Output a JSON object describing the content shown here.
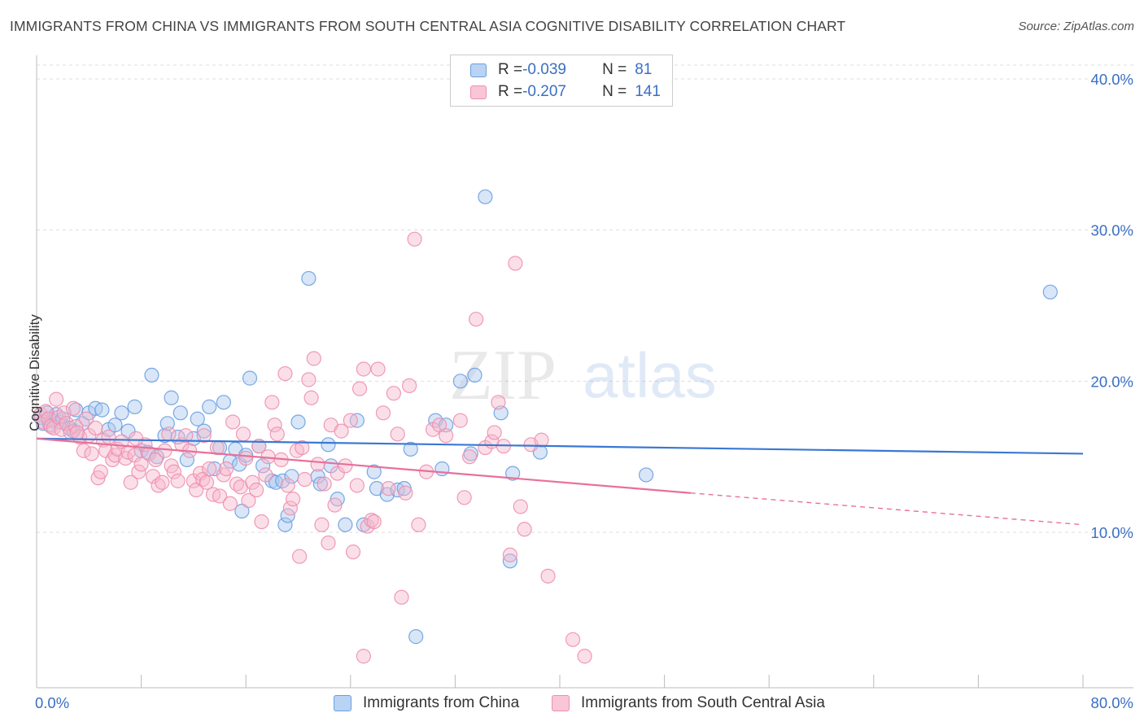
{
  "title": "IMMIGRANTS FROM CHINA VS IMMIGRANTS FROM SOUTH CENTRAL ASIA COGNITIVE DISABILITY CORRELATION CHART",
  "source": "Source: ZipAtlas.com",
  "watermark": {
    "zip": "ZIP",
    "atlas": "atlas"
  },
  "legend": {
    "rows": [
      {
        "r_label": "R = ",
        "r_value": "-0.039",
        "n_label": "N = ",
        "n_value": "81"
      },
      {
        "r_label": "R = ",
        "r_value": "-0.207",
        "n_label": "N = ",
        "n_value": "141"
      }
    ]
  },
  "colors": {
    "china_fill": "#a9c8f0",
    "china_stroke": "#6b9ee0",
    "china_line": "#3a78d4",
    "sca_fill": "#f6b9cc",
    "sca_stroke": "#ee8fae",
    "sca_line": "#e8709a",
    "tick_label": "#3a6fc4",
    "grid": "#dddddd"
  },
  "chart_data": {
    "type": "scatter",
    "title": "IMMIGRANTS FROM CHINA VS IMMIGRANTS FROM SOUTH CENTRAL ASIA COGNITIVE DISABILITY CORRELATION CHART",
    "xlabel": "",
    "ylabel": "Cognitive Disability",
    "xlim": [
      0,
      80
    ],
    "ylim": [
      0,
      41.5
    ],
    "x_tick_labels": [
      "0.0%",
      "80.0%"
    ],
    "y_ticks": [
      10,
      20,
      30,
      40
    ],
    "y_tick_labels": [
      "10.0%",
      "20.0%",
      "30.0%",
      "40.0%"
    ],
    "series": [
      {
        "name": "Immigrants from China",
        "r": -0.039,
        "n": 81,
        "trend": {
          "x0": 0,
          "y0": 16.2,
          "x1": 80,
          "y1": 15.2
        },
        "points": [
          [
            0.3,
            17.6
          ],
          [
            0.5,
            17.2
          ],
          [
            0.8,
            17.9
          ],
          [
            1.0,
            17.1
          ],
          [
            1.2,
            17.4
          ],
          [
            1.5,
            17.8
          ],
          [
            1.8,
            17.3
          ],
          [
            2.0,
            17.5
          ],
          [
            2.5,
            16.9
          ],
          [
            3.0,
            18.1
          ],
          [
            3.5,
            17.2
          ],
          [
            4.0,
            17.9
          ],
          [
            4.5,
            18.2
          ],
          [
            5.0,
            18.1
          ],
          [
            5.5,
            16.8
          ],
          [
            6.0,
            17.1
          ],
          [
            6.5,
            17.9
          ],
          [
            7.0,
            16.7
          ],
          [
            7.5,
            18.3
          ],
          [
            8.0,
            15.4
          ],
          [
            8.5,
            15.3
          ],
          [
            8.8,
            20.4
          ],
          [
            9.2,
            15.0
          ],
          [
            9.8,
            16.4
          ],
          [
            10.0,
            17.2
          ],
          [
            10.3,
            18.9
          ],
          [
            10.8,
            16.3
          ],
          [
            11.0,
            17.9
          ],
          [
            11.5,
            14.8
          ],
          [
            12.0,
            16.2
          ],
          [
            12.3,
            17.5
          ],
          [
            12.8,
            16.7
          ],
          [
            13.2,
            18.3
          ],
          [
            13.6,
            14.2
          ],
          [
            14.0,
            15.6
          ],
          [
            14.3,
            18.6
          ],
          [
            14.8,
            14.7
          ],
          [
            15.2,
            15.5
          ],
          [
            15.5,
            14.5
          ],
          [
            15.7,
            11.4
          ],
          [
            16.0,
            15.1
          ],
          [
            16.3,
            20.2
          ],
          [
            17.0,
            15.7
          ],
          [
            17.3,
            14.4
          ],
          [
            18.0,
            13.4
          ],
          [
            18.3,
            13.3
          ],
          [
            18.8,
            13.4
          ],
          [
            19.0,
            10.5
          ],
          [
            19.2,
            11.1
          ],
          [
            19.5,
            13.7
          ],
          [
            20.0,
            17.3
          ],
          [
            20.8,
            26.8
          ],
          [
            21.5,
            13.7
          ],
          [
            21.7,
            13.2
          ],
          [
            22.3,
            15.8
          ],
          [
            22.5,
            14.4
          ],
          [
            23.0,
            12.2
          ],
          [
            23.6,
            10.5
          ],
          [
            24.5,
            17.4
          ],
          [
            25.0,
            10.5
          ],
          [
            25.8,
            14.0
          ],
          [
            26.0,
            12.9
          ],
          [
            26.8,
            12.5
          ],
          [
            27.6,
            12.8
          ],
          [
            28.1,
            12.9
          ],
          [
            28.6,
            15.5
          ],
          [
            29.0,
            3.1
          ],
          [
            30.5,
            17.4
          ],
          [
            31.0,
            14.2
          ],
          [
            31.3,
            17.1
          ],
          [
            32.4,
            20.0
          ],
          [
            33.2,
            15.2
          ],
          [
            33.5,
            20.4
          ],
          [
            34.3,
            32.2
          ],
          [
            35.5,
            17.9
          ],
          [
            36.2,
            8.1
          ],
          [
            36.4,
            13.9
          ],
          [
            38.5,
            15.3
          ],
          [
            46.6,
            13.8
          ],
          [
            77.5,
            25.9
          ],
          [
            2.8,
            16.7
          ]
        ]
      },
      {
        "name": "Immigrants from South Central Asia",
        "r": -0.207,
        "n": 141,
        "trend": {
          "x0": 0,
          "y0": 16.2,
          "x1": 50,
          "y1": 12.6,
          "dash_x1": 80,
          "dash_y1": 10.5
        },
        "points": [
          [
            0.3,
            17.8
          ],
          [
            0.5,
            17.3
          ],
          [
            0.7,
            18.0
          ],
          [
            0.9,
            17.5
          ],
          [
            1.1,
            17.0
          ],
          [
            1.3,
            16.9
          ],
          [
            1.5,
            18.8
          ],
          [
            1.7,
            17.6
          ],
          [
            1.9,
            16.8
          ],
          [
            2.1,
            17.9
          ],
          [
            2.3,
            17.2
          ],
          [
            2.6,
            16.6
          ],
          [
            2.8,
            18.2
          ],
          [
            3.0,
            17.0
          ],
          [
            3.3,
            16.3
          ],
          [
            3.6,
            15.4
          ],
          [
            3.8,
            17.5
          ],
          [
            4.0,
            16.4
          ],
          [
            4.2,
            15.2
          ],
          [
            4.5,
            16.9
          ],
          [
            4.7,
            13.6
          ],
          [
            4.9,
            14.0
          ],
          [
            5.1,
            16.1
          ],
          [
            5.3,
            15.4
          ],
          [
            5.5,
            16.3
          ],
          [
            5.8,
            14.8
          ],
          [
            6.0,
            15.1
          ],
          [
            6.2,
            15.5
          ],
          [
            6.5,
            16.0
          ],
          [
            6.8,
            14.9
          ],
          [
            7.0,
            15.3
          ],
          [
            7.2,
            13.3
          ],
          [
            7.5,
            15.1
          ],
          [
            7.8,
            14.0
          ],
          [
            8.0,
            14.5
          ],
          [
            8.3,
            15.8
          ],
          [
            8.6,
            15.2
          ],
          [
            8.9,
            13.7
          ],
          [
            9.1,
            14.8
          ],
          [
            9.3,
            13.1
          ],
          [
            9.6,
            13.3
          ],
          [
            9.8,
            15.4
          ],
          [
            10.1,
            16.5
          ],
          [
            10.3,
            14.4
          ],
          [
            10.5,
            14.0
          ],
          [
            10.8,
            13.4
          ],
          [
            11.1,
            15.8
          ],
          [
            11.4,
            16.4
          ],
          [
            11.7,
            15.4
          ],
          [
            12.0,
            13.4
          ],
          [
            12.2,
            12.8
          ],
          [
            12.5,
            13.9
          ],
          [
            12.7,
            13.5
          ],
          [
            13.0,
            13.3
          ],
          [
            13.2,
            14.2
          ],
          [
            13.5,
            12.5
          ],
          [
            13.8,
            15.6
          ],
          [
            14.0,
            12.4
          ],
          [
            14.3,
            13.8
          ],
          [
            14.5,
            14.2
          ],
          [
            14.8,
            11.9
          ],
          [
            15.0,
            17.3
          ],
          [
            15.3,
            13.2
          ],
          [
            15.6,
            13.0
          ],
          [
            15.8,
            16.5
          ],
          [
            16.0,
            14.9
          ],
          [
            16.2,
            12.1
          ],
          [
            16.5,
            13.3
          ],
          [
            16.8,
            12.8
          ],
          [
            17.0,
            15.7
          ],
          [
            17.2,
            10.7
          ],
          [
            17.5,
            13.8
          ],
          [
            17.7,
            15.0
          ],
          [
            18.0,
            18.6
          ],
          [
            18.2,
            17.1
          ],
          [
            18.4,
            16.5
          ],
          [
            18.7,
            14.8
          ],
          [
            19.0,
            20.5
          ],
          [
            19.2,
            13.1
          ],
          [
            19.4,
            11.6
          ],
          [
            19.6,
            12.2
          ],
          [
            19.9,
            15.4
          ],
          [
            20.1,
            8.4
          ],
          [
            20.3,
            15.6
          ],
          [
            20.5,
            13.5
          ],
          [
            20.8,
            20.1
          ],
          [
            21.0,
            18.9
          ],
          [
            21.2,
            21.5
          ],
          [
            21.5,
            14.5
          ],
          [
            21.8,
            10.5
          ],
          [
            22.0,
            13.2
          ],
          [
            22.3,
            9.3
          ],
          [
            22.5,
            17.1
          ],
          [
            22.8,
            11.8
          ],
          [
            23.0,
            13.9
          ],
          [
            23.3,
            16.7
          ],
          [
            23.6,
            14.4
          ],
          [
            24.0,
            17.4
          ],
          [
            24.2,
            8.7
          ],
          [
            24.5,
            13.1
          ],
          [
            24.7,
            19.5
          ],
          [
            25.0,
            20.8
          ],
          [
            25.3,
            10.4
          ],
          [
            25.6,
            10.8
          ],
          [
            25.8,
            10.7
          ],
          [
            26.1,
            20.8
          ],
          [
            26.5,
            17.9
          ],
          [
            26.9,
            12.9
          ],
          [
            27.3,
            19.2
          ],
          [
            27.6,
            16.5
          ],
          [
            27.9,
            5.7
          ],
          [
            28.2,
            12.6
          ],
          [
            28.5,
            19.7
          ],
          [
            28.9,
            29.4
          ],
          [
            29.2,
            10.5
          ],
          [
            29.8,
            14.0
          ],
          [
            30.3,
            16.8
          ],
          [
            30.8,
            17.1
          ],
          [
            31.3,
            16.4
          ],
          [
            32.4,
            17.4
          ],
          [
            32.7,
            12.3
          ],
          [
            33.1,
            15.0
          ],
          [
            33.6,
            24.1
          ],
          [
            34.3,
            15.6
          ],
          [
            34.8,
            16.0
          ],
          [
            35.0,
            16.6
          ],
          [
            35.3,
            18.6
          ],
          [
            35.7,
            15.7
          ],
          [
            36.2,
            8.5
          ],
          [
            36.6,
            27.8
          ],
          [
            37.0,
            11.7
          ],
          [
            37.3,
            10.2
          ],
          [
            37.8,
            15.8
          ],
          [
            38.6,
            16.1
          ],
          [
            39.1,
            7.1
          ],
          [
            41.0,
            2.9
          ],
          [
            41.9,
            1.8
          ],
          [
            25.0,
            1.8
          ],
          [
            7.6,
            16.2
          ],
          [
            12.8,
            16.4
          ],
          [
            3.1,
            16.6
          ]
        ]
      }
    ]
  },
  "bottom_legend": {
    "china_label": "Immigrants from China",
    "sca_label": "Immigrants from South Central Asia"
  }
}
